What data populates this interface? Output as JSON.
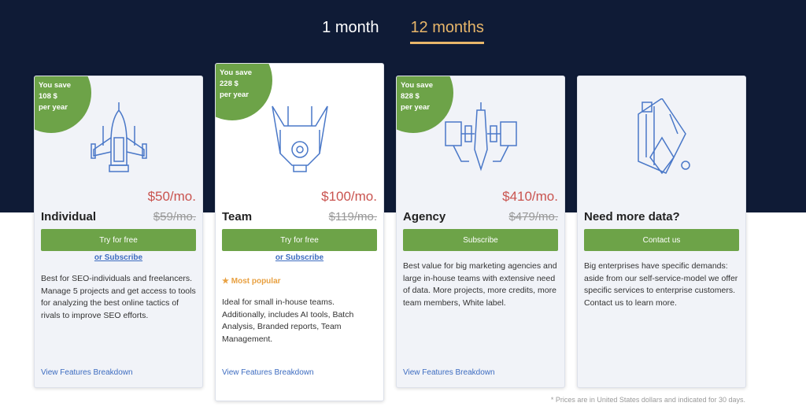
{
  "tabs": [
    {
      "label": "1 month",
      "active": false
    },
    {
      "label": "12 months",
      "active": true
    }
  ],
  "plans": [
    {
      "save": [
        "You save",
        "108 $",
        "per year"
      ],
      "price": "$50/mo.",
      "name": "Individual",
      "old_price": "$59/mo.",
      "button": "Try for free",
      "subscribe": "or Subscribe",
      "description": "Best for SEO-individuals and freelancers. Manage 5 projects and get access to tools for analyzing the best online tactics of rivals to improve SEO efforts.",
      "features": "View Features Breakdown",
      "icon": "rocket-ship-icon"
    },
    {
      "save": [
        "You save",
        "228 $",
        "per year"
      ],
      "price": "$100/mo.",
      "name": "Team",
      "old_price": "$119/mo.",
      "button": "Try for free",
      "subscribe": "or Subscribe",
      "badge": "Most popular",
      "description": "Ideal for small in-house teams. Additionally, includes AI tools, Batch Analysis, Branded reports, Team Management.",
      "features": "View Features Breakdown",
      "icon": "spaceship-icon"
    },
    {
      "save": [
        "You save",
        "828 $",
        "per year"
      ],
      "price": "$410/mo.",
      "name": "Agency",
      "old_price": "$479/mo.",
      "button": "Subscribe",
      "description": "Best value for big marketing agencies and large in-house teams with extensive need of data. More projects, more credits, more team members, White label.",
      "features": "View Features Breakdown",
      "icon": "starfighter-icon"
    },
    {
      "name": "Need more data?",
      "button": "Contact us",
      "description": "Big enterprises have specific demands: aside from our self-service-model we offer specific services to enterprise customers. Contact us to learn more.",
      "icon": "mothership-icon"
    }
  ],
  "colors": {
    "navy": "#0f1b36",
    "green": "#6da348",
    "accent": "#e8b66a",
    "price": "#c9534f",
    "link": "#3d6cc0"
  },
  "footnote": "* Prices are in United States dollars and indicated for 30 days."
}
